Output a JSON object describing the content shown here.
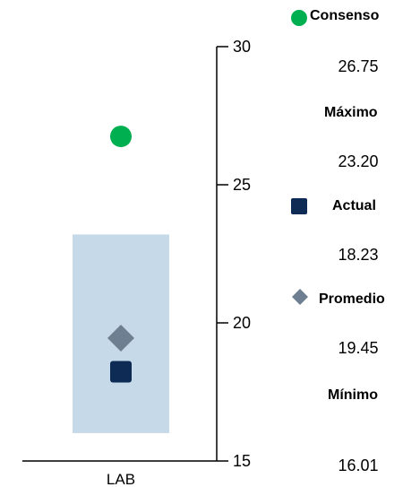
{
  "chart_data": {
    "type": "range-marker",
    "categories": [
      "LAB"
    ],
    "ylim": [
      15,
      30
    ],
    "yticks": [
      "15",
      "20",
      "25",
      "30"
    ],
    "range": {
      "min": 16.01,
      "max": 23.2,
      "color": "#c5d9e8"
    },
    "series": [
      {
        "name": "Consenso",
        "value": 26.75,
        "marker": "circle",
        "color": "#00b050"
      },
      {
        "name": "Actual",
        "value": 18.23,
        "marker": "square",
        "color": "#0d2b55"
      },
      {
        "name": "Promedio",
        "value": 19.45,
        "marker": "diamond",
        "color": "#6d7f90"
      }
    ]
  },
  "legend": {
    "consenso": {
      "label": "Consenso",
      "value": "26.75"
    },
    "maximo": {
      "label": "Máximo",
      "value": "23.20"
    },
    "actual": {
      "label": "Actual",
      "value": "18.23"
    },
    "promedio": {
      "label": "Promedio",
      "value": "19.45"
    },
    "minimo": {
      "label": "Mínimo",
      "value": "16.01"
    }
  }
}
